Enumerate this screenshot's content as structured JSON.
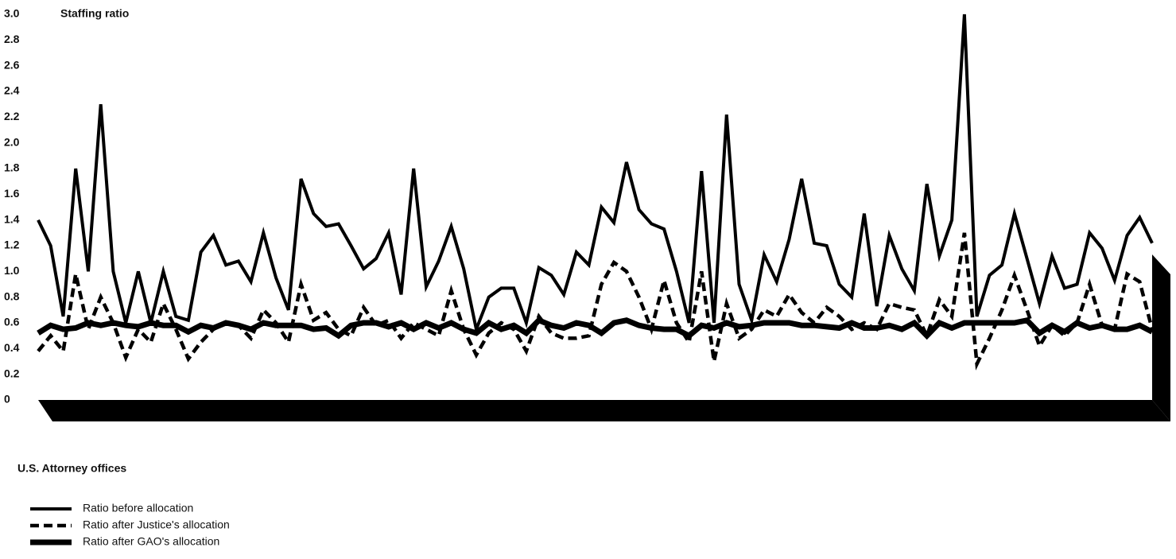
{
  "chart_data": {
    "type": "line",
    "y_axis_label": "Staffing ratio",
    "x_axis_label": "U.S. Attorney offices",
    "ylim": [
      0,
      3.0
    ],
    "yticks": [
      0,
      0.2,
      0.4,
      0.6,
      0.8,
      {
        "value": 1.0,
        "label": "1.0"
      },
      1.2,
      1.4,
      1.6,
      1.8,
      {
        "value": 2.0,
        "label": "2.0"
      },
      2.2,
      2.4,
      2.6,
      2.8,
      {
        "value": 3.0,
        "label": "3.0"
      }
    ],
    "series": [
      {
        "name": "Ratio before allocation",
        "color": "#000000",
        "style": "solid",
        "values": [
          1.4,
          1.2,
          0.65,
          1.8,
          1.0,
          2.3,
          1.0,
          0.6,
          1.0,
          0.6,
          1.0,
          0.65,
          0.62,
          1.15,
          1.28,
          1.05,
          1.08,
          0.92,
          1.3,
          0.95,
          0.7,
          1.72,
          1.45,
          1.35,
          1.37,
          1.2,
          1.02,
          1.1,
          1.3,
          0.82,
          1.8,
          0.88,
          1.08,
          1.35,
          1.02,
          0.55,
          0.8,
          0.87,
          0.87,
          0.6,
          1.03,
          0.97,
          0.82,
          1.15,
          1.05,
          1.5,
          1.38,
          1.85,
          1.48,
          1.37,
          1.33,
          1.0,
          0.6,
          1.78,
          0.6,
          2.22,
          0.9,
          0.62,
          1.13,
          0.92,
          1.25,
          1.72,
          1.22,
          1.2,
          0.9,
          0.8,
          1.45,
          0.73,
          1.28,
          1.02,
          0.85,
          1.68,
          1.12,
          1.4,
          3.0,
          0.65,
          0.97,
          1.05,
          1.45,
          1.1,
          0.75,
          1.12,
          0.87,
          0.9,
          1.3,
          1.18,
          0.93,
          1.28,
          1.42,
          1.22
        ]
      },
      {
        "name": "Ratio after Justice's allocation",
        "color": "#000000",
        "style": "dashed",
        "values": [
          0.38,
          0.5,
          0.38,
          0.98,
          0.55,
          0.8,
          0.6,
          0.33,
          0.55,
          0.45,
          0.75,
          0.55,
          0.32,
          0.45,
          0.55,
          0.6,
          0.58,
          0.48,
          0.7,
          0.6,
          0.45,
          0.9,
          0.62,
          0.68,
          0.55,
          0.5,
          0.72,
          0.58,
          0.62,
          0.48,
          0.6,
          0.55,
          0.5,
          0.85,
          0.55,
          0.35,
          0.52,
          0.6,
          0.55,
          0.38,
          0.65,
          0.52,
          0.48,
          0.48,
          0.5,
          0.9,
          1.07,
          1.0,
          0.8,
          0.55,
          0.93,
          0.6,
          0.45,
          1.0,
          0.3,
          0.75,
          0.48,
          0.55,
          0.7,
          0.65,
          0.82,
          0.68,
          0.6,
          0.72,
          0.65,
          0.55,
          0.6,
          0.55,
          0.75,
          0.72,
          0.7,
          0.5,
          0.78,
          0.65,
          1.3,
          0.28,
          0.48,
          0.7,
          0.97,
          0.7,
          0.42,
          0.58,
          0.5,
          0.6,
          0.9,
          0.58,
          0.55,
          0.98,
          0.92,
          0.55
        ]
      },
      {
        "name": "Ratio after GAO's allocation",
        "color": "#000000",
        "style": "thick",
        "values": [
          0.52,
          0.58,
          0.55,
          0.56,
          0.6,
          0.58,
          0.6,
          0.58,
          0.57,
          0.6,
          0.58,
          0.58,
          0.53,
          0.58,
          0.56,
          0.6,
          0.58,
          0.55,
          0.6,
          0.58,
          0.58,
          0.58,
          0.55,
          0.56,
          0.5,
          0.58,
          0.6,
          0.6,
          0.57,
          0.6,
          0.55,
          0.6,
          0.56,
          0.6,
          0.55,
          0.52,
          0.6,
          0.55,
          0.58,
          0.52,
          0.62,
          0.58,
          0.56,
          0.6,
          0.58,
          0.52,
          0.6,
          0.62,
          0.58,
          0.56,
          0.55,
          0.55,
          0.5,
          0.58,
          0.56,
          0.6,
          0.57,
          0.58,
          0.6,
          0.6,
          0.6,
          0.58,
          0.58,
          0.57,
          0.56,
          0.6,
          0.56,
          0.56,
          0.58,
          0.55,
          0.6,
          0.5,
          0.6,
          0.56,
          0.6,
          0.6,
          0.6,
          0.6,
          0.6,
          0.62,
          0.52,
          0.58,
          0.53,
          0.6,
          0.56,
          0.58,
          0.55,
          0.55,
          0.58,
          0.53
        ]
      }
    ]
  }
}
